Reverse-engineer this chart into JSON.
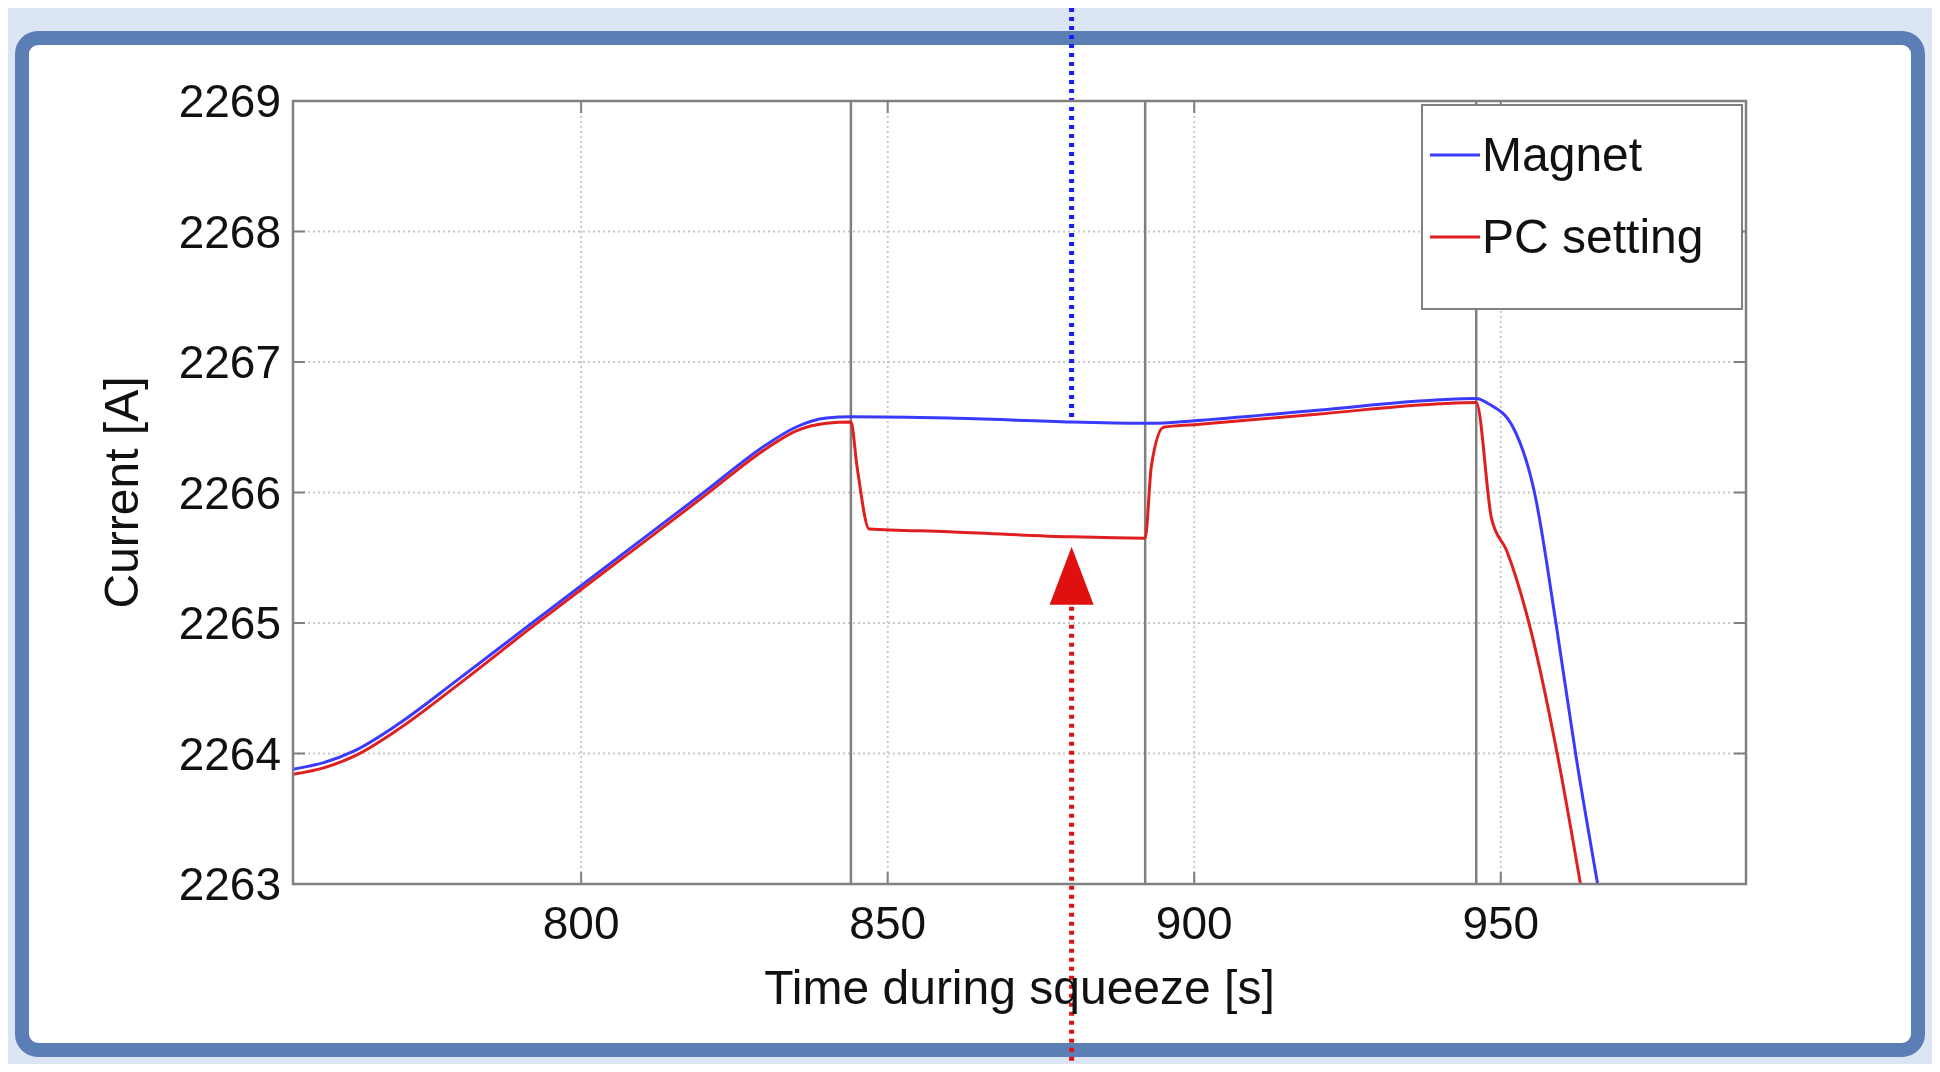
{
  "chart_data": {
    "type": "line",
    "xlabel": "Time during squeeze [s]",
    "ylabel": "Current [A]",
    "xlim": [
      753,
      990
    ],
    "ylim": [
      2263,
      2269
    ],
    "xticks": [
      800,
      850,
      900,
      950
    ],
    "yticks": [
      2263,
      2264,
      2265,
      2266,
      2267,
      2268,
      2269
    ],
    "grid": true,
    "legend": "top right",
    "series": [
      {
        "name": "Magnet",
        "color": "#3a3aff",
        "x": [
          753,
          758,
          763,
          770,
          780,
          792,
          806,
          820,
          830,
          835,
          840,
          844,
          860,
          880,
          893,
          900,
          920,
          940,
          946,
          948,
          952,
          955.5,
          959,
          962.2,
          965.8
        ],
        "values": [
          2263.88,
          2263.93,
          2264.02,
          2264.22,
          2264.57,
          2265,
          2265.5,
          2266,
          2266.36,
          2266.5,
          2266.57,
          2266.58,
          2266.57,
          2266.54,
          2266.53,
          2266.55,
          2266.63,
          2266.71,
          2266.72,
          2266.68,
          2266.5,
          2266,
          2265,
          2264,
          2263
        ]
      },
      {
        "name": "PC setting",
        "color": "#e02020",
        "x": [
          753,
          758,
          763,
          770,
          780,
          792,
          806,
          820,
          830,
          835,
          840,
          844,
          845,
          847,
          860,
          880,
          892,
          893,
          895,
          900,
          920,
          940,
          946,
          948.5,
          951,
          954.6,
          959.2,
          963
        ],
        "values": [
          2263.84,
          2263.89,
          2263.98,
          2264.18,
          2264.53,
          2264.97,
          2265.47,
          2265.97,
          2266.33,
          2266.47,
          2266.53,
          2266.54,
          2266.2,
          2265.72,
          2265.7,
          2265.66,
          2265.65,
          2266.2,
          2266.5,
          2266.52,
          2266.6,
          2266.68,
          2266.69,
          2265.8,
          2265.55,
          2265,
          2264,
          2263
        ]
      }
    ],
    "ref_lines": [
      {
        "axis": "x",
        "value": 844,
        "color": "#808080"
      },
      {
        "axis": "x",
        "value": 892,
        "color": "#808080"
      },
      {
        "axis": "x",
        "value": 946,
        "color": "#808080"
      },
      {
        "axis": "x",
        "value": 880,
        "color": "#1a1aff",
        "line_style": "dotted"
      },
      {
        "axis": "x",
        "value": 880,
        "color": "#e01010",
        "line_style": "dotted"
      }
    ]
  }
}
